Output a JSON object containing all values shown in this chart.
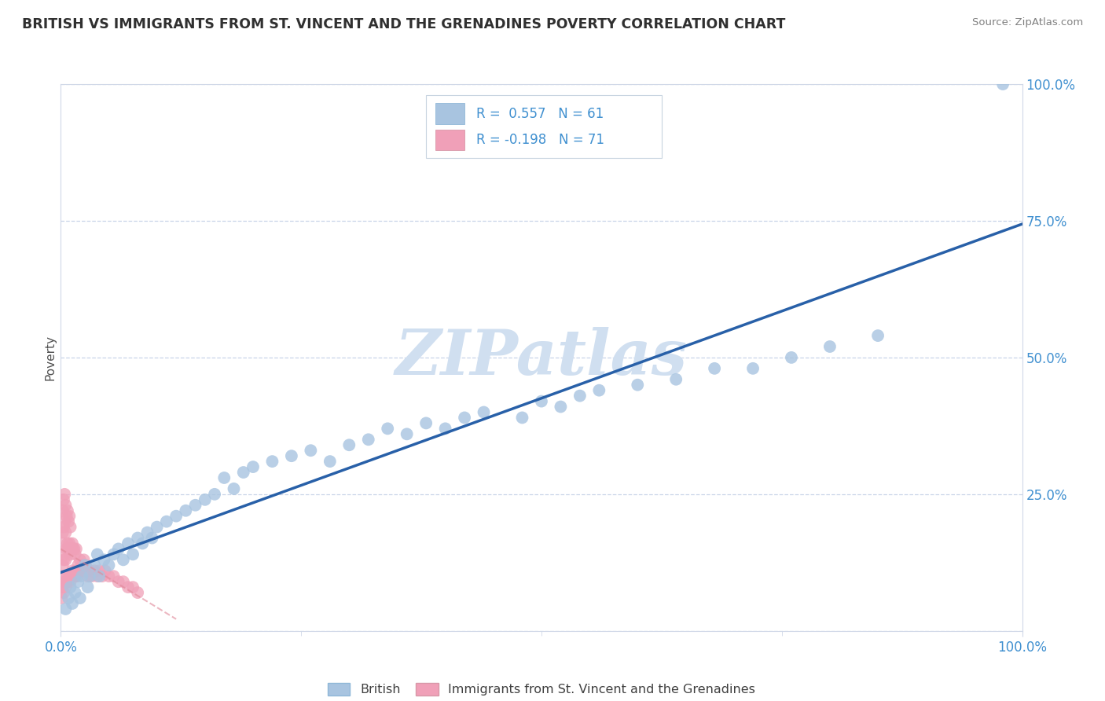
{
  "title": "BRITISH VS IMMIGRANTS FROM ST. VINCENT AND THE GRENADINES POVERTY CORRELATION CHART",
  "source": "Source: ZipAtlas.com",
  "ylabel": "Poverty",
  "right_yticklabels": [
    "",
    "25.0%",
    "50.0%",
    "75.0%",
    "100.0%"
  ],
  "legend_label1": "British",
  "legend_label2": "Immigrants from St. Vincent and the Grenadines",
  "blue_color": "#a8c4e0",
  "pink_color": "#f0a0b8",
  "line_color": "#2860a8",
  "pink_line_color": "#e08898",
  "watermark": "ZIPatlas",
  "watermark_color": "#d0dff0",
  "background_color": "#ffffff",
  "title_color": "#404040",
  "r1_value": "R =  0.557",
  "r1_n": "N = 61",
  "r2_value": "R = -0.198",
  "r2_n": "N = 71",
  "r_color": "#4090d0",
  "grid_color": "#c8d4e8",
  "spine_color": "#d0d8e8",
  "blue_scatter_x": [
    0.005,
    0.008,
    0.01,
    0.012,
    0.015,
    0.018,
    0.02,
    0.022,
    0.025,
    0.028,
    0.03,
    0.035,
    0.038,
    0.04,
    0.045,
    0.05,
    0.055,
    0.06,
    0.065,
    0.07,
    0.075,
    0.08,
    0.085,
    0.09,
    0.095,
    0.1,
    0.11,
    0.12,
    0.13,
    0.14,
    0.15,
    0.16,
    0.17,
    0.18,
    0.19,
    0.2,
    0.22,
    0.24,
    0.26,
    0.28,
    0.3,
    0.32,
    0.34,
    0.36,
    0.38,
    0.4,
    0.42,
    0.44,
    0.48,
    0.5,
    0.52,
    0.54,
    0.56,
    0.6,
    0.64,
    0.68,
    0.72,
    0.76,
    0.8,
    0.85,
    0.98
  ],
  "blue_scatter_y": [
    0.04,
    0.06,
    0.08,
    0.05,
    0.07,
    0.09,
    0.06,
    0.1,
    0.12,
    0.08,
    0.1,
    0.12,
    0.14,
    0.1,
    0.13,
    0.12,
    0.14,
    0.15,
    0.13,
    0.16,
    0.14,
    0.17,
    0.16,
    0.18,
    0.17,
    0.19,
    0.2,
    0.21,
    0.22,
    0.23,
    0.24,
    0.25,
    0.28,
    0.26,
    0.29,
    0.3,
    0.31,
    0.32,
    0.33,
    0.31,
    0.34,
    0.35,
    0.37,
    0.36,
    0.38,
    0.37,
    0.39,
    0.4,
    0.39,
    0.42,
    0.41,
    0.43,
    0.44,
    0.45,
    0.46,
    0.48,
    0.48,
    0.5,
    0.52,
    0.54,
    1.0
  ],
  "pink_scatter_x": [
    0.001,
    0.001,
    0.001,
    0.002,
    0.002,
    0.002,
    0.002,
    0.003,
    0.003,
    0.003,
    0.003,
    0.004,
    0.004,
    0.004,
    0.004,
    0.005,
    0.005,
    0.005,
    0.005,
    0.006,
    0.006,
    0.006,
    0.007,
    0.007,
    0.007,
    0.008,
    0.008,
    0.008,
    0.009,
    0.009,
    0.009,
    0.01,
    0.01,
    0.01,
    0.011,
    0.011,
    0.012,
    0.012,
    0.013,
    0.013,
    0.014,
    0.014,
    0.015,
    0.015,
    0.016,
    0.016,
    0.017,
    0.018,
    0.019,
    0.02,
    0.021,
    0.022,
    0.023,
    0.024,
    0.025,
    0.026,
    0.028,
    0.03,
    0.032,
    0.035,
    0.038,
    0.04,
    0.043,
    0.046,
    0.05,
    0.055,
    0.06,
    0.065,
    0.07,
    0.075,
    0.08
  ],
  "pink_scatter_y": [
    0.06,
    0.1,
    0.16,
    0.08,
    0.12,
    0.18,
    0.22,
    0.07,
    0.13,
    0.19,
    0.24,
    0.09,
    0.14,
    0.2,
    0.25,
    0.08,
    0.13,
    0.18,
    0.23,
    0.09,
    0.15,
    0.21,
    0.1,
    0.16,
    0.22,
    0.09,
    0.15,
    0.2,
    0.1,
    0.16,
    0.21,
    0.09,
    0.14,
    0.19,
    0.1,
    0.15,
    0.11,
    0.16,
    0.1,
    0.15,
    0.1,
    0.15,
    0.1,
    0.14,
    0.11,
    0.15,
    0.1,
    0.12,
    0.11,
    0.13,
    0.11,
    0.12,
    0.11,
    0.13,
    0.11,
    0.12,
    0.1,
    0.11,
    0.1,
    0.11,
    0.1,
    0.11,
    0.1,
    0.11,
    0.1,
    0.1,
    0.09,
    0.09,
    0.08,
    0.08,
    0.07
  ]
}
